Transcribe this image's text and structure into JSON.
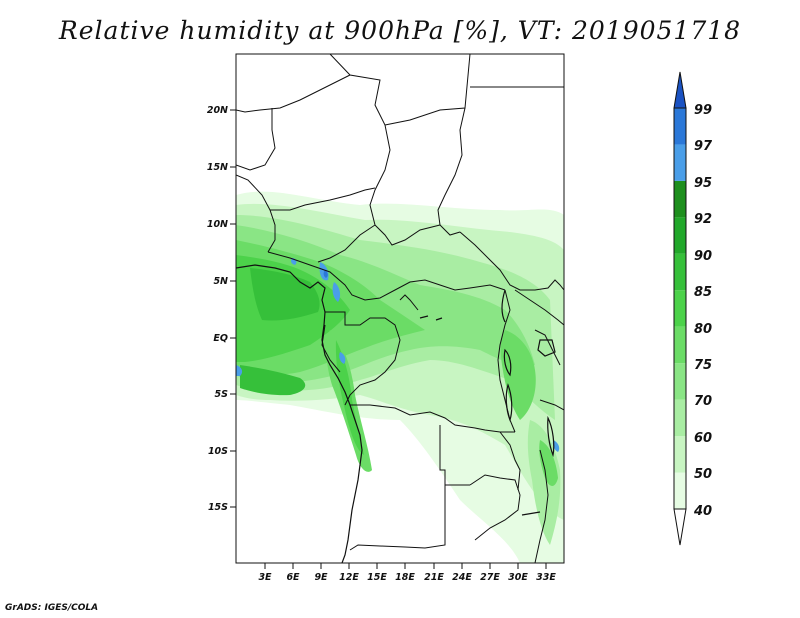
{
  "title": "Relative humidity at 900hPa [%], VT: 2019051718",
  "credit": "GrADS: IGES/COLA",
  "map": {
    "lat_labels": [
      "20N",
      "15N",
      "10N",
      "5N",
      "EQ",
      "5S",
      "10S",
      "15S"
    ],
    "lon_labels": [
      "3E",
      "6E",
      "9E",
      "12E",
      "15E",
      "18E",
      "21E",
      "24E",
      "27E",
      "30E",
      "33E"
    ]
  },
  "colorbar": {
    "levels": [
      "40",
      "50",
      "60",
      "70",
      "75",
      "80",
      "85",
      "90",
      "92",
      "95",
      "97",
      "99"
    ],
    "colors": [
      "#ffffff",
      "#e6fce3",
      "#c8f5c2",
      "#a9eda3",
      "#8ae585",
      "#6bdc66",
      "#4cd24a",
      "#36c03a",
      "#22a82a",
      "#1e8f1e",
      "#4a9ee8",
      "#2b78d8",
      "#1a52c2"
    ]
  }
}
